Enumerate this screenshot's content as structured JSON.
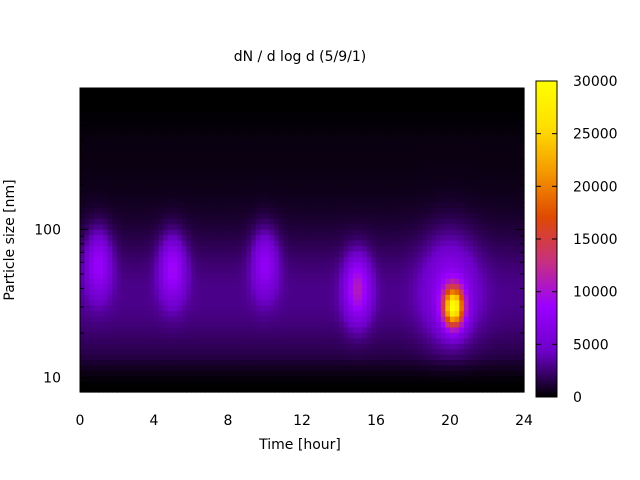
{
  "chart_data": {
    "type": "heatmap",
    "title": "dN / d log d (5/9/1)",
    "xlabel": "Time [hour]",
    "ylabel": "Particle size [nm]",
    "x_ticks": [
      0,
      4,
      8,
      12,
      16,
      20,
      24
    ],
    "x_tick_labels": [
      "0",
      "4",
      "8",
      "12",
      "16",
      "20",
      "24"
    ],
    "xlim": [
      0,
      24
    ],
    "y_scale": "log",
    "ylim": [
      8,
      900
    ],
    "y_ticks": [
      10,
      100
    ],
    "y_tick_labels": [
      "10",
      "100"
    ],
    "colorbar": {
      "range": [
        0,
        30000
      ],
      "ticks": [
        0,
        5000,
        10000,
        15000,
        20000,
        25000,
        30000
      ],
      "tick_labels": [
        "0",
        "5000",
        "10000",
        "15000",
        "20000",
        "25000",
        "30000"
      ],
      "palette": [
        "#000000",
        "#6d00c8",
        "#9a00ff",
        "#c73080",
        "#e04a00",
        "#f59a00",
        "#ffe000",
        "#ffff00"
      ]
    },
    "features": [
      {
        "time_hour": 20.2,
        "size_nm": 30,
        "peak": 23000,
        "note": "strong mode near 20 h, ~25-40 nm"
      },
      {
        "time_hour": 15.0,
        "size_nm": 40,
        "peak": 8000
      },
      {
        "time_hour": 5.0,
        "size_nm": 55,
        "peak": 6500
      },
      {
        "time_hour": 1.0,
        "size_nm": 60,
        "peak": 6000
      },
      {
        "time_hour": 10.0,
        "size_nm": 60,
        "peak": 5500
      }
    ],
    "grid": false,
    "legend": "colorbar-right"
  }
}
